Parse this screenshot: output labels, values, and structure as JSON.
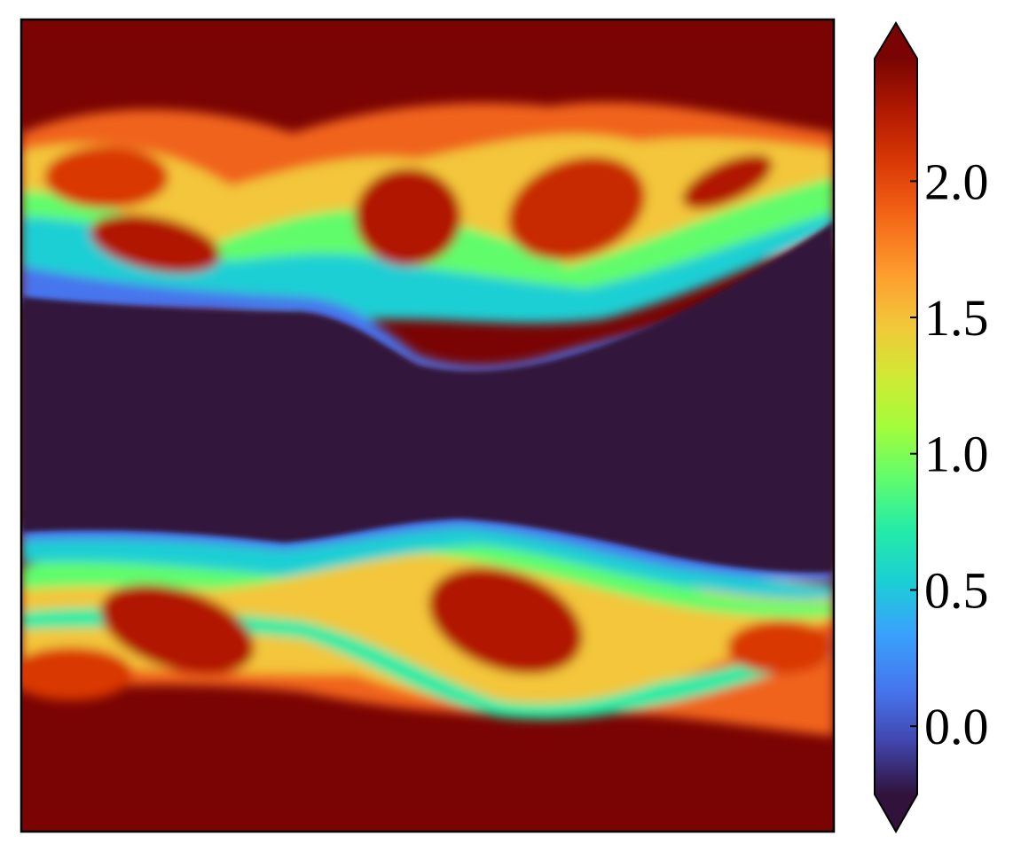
{
  "chart_data": {
    "type": "heatmap",
    "title": "",
    "xlabel": "",
    "ylabel": "",
    "colorbar": {
      "ticks": [
        0.0,
        0.5,
        1.0,
        1.5,
        2.0
      ],
      "tick_labels": [
        "0.0",
        "0.5",
        "1.0",
        "1.5",
        "2.0"
      ],
      "range": [
        -0.25,
        2.45
      ],
      "extend": "both",
      "colormap": "turbo",
      "placement": "right"
    },
    "field_description_values": {
      "outer_region_value": 2.2,
      "center_band_value": 0.0,
      "mixing_layers": 2
    }
  },
  "colors": {
    "low": "#30123b",
    "mid_low": "#4666dd",
    "mid": "#36e8a7",
    "mid_high": "#faba39",
    "high": "#7a0403"
  }
}
